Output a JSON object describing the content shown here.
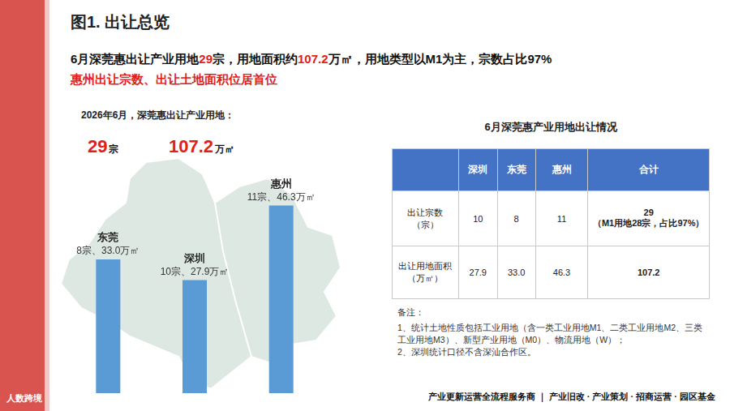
{
  "header": {
    "title": "图1. 出让总览",
    "headline": [
      [
        {
          "text": "6月深莞惠出让产业用地",
          "red": false
        },
        {
          "text": "29",
          "red": true
        },
        {
          "text": "宗，用地面积约",
          "red": false
        },
        {
          "text": "107.2",
          "red": true
        },
        {
          "text": "万㎡，用地类型以M1为主，宗数占比97%",
          "red": false
        }
      ],
      [
        {
          "text": "惠州出让宗数、出让土地面积位居首位",
          "red": true
        }
      ]
    ]
  },
  "summary": {
    "label": "2026年6月，深莞惠出让产业用地：",
    "figures": [
      {
        "value": "29",
        "unit": "宗"
      },
      {
        "value": "107.2",
        "unit": "万㎡"
      }
    ]
  },
  "chart_data": {
    "type": "bar",
    "categories": [
      "东莞",
      "深圳",
      "惠州"
    ],
    "values": [
      33.0,
      27.9,
      46.3
    ],
    "value_labels": [
      "8宗、33.0万㎡",
      "10宗、27.9万㎡",
      "11宗、46.3万㎡"
    ],
    "color": "#5b9bd5",
    "ylim": [
      0,
      50
    ],
    "grid": false,
    "tick_labels": false,
    "data_labels": true
  },
  "table": {
    "title": "6月深莞惠产业用地出让情况",
    "header": [
      "深圳",
      "东莞",
      "惠州",
      "合计"
    ],
    "rows": [
      {
        "label": "出让宗数（宗）",
        "cells": [
          "10",
          "8",
          "11"
        ],
        "total": [
          "29",
          "（M1用地28宗，占比97%）"
        ]
      },
      {
        "label": "出让用地面积（万㎡）",
        "cells": [
          "27.9",
          "33.0",
          "46.3"
        ],
        "total": [
          "107.2"
        ]
      }
    ]
  },
  "notes": {
    "title": "备注：",
    "items": [
      "1、统计土地性质包括工业用地（含一类工业用地M1、二类工业用地M2、三类工业用地M3）、新型产业用地（M0）、物流用地（W）；",
      "2、深圳统计口径不含深汕合作区。"
    ]
  },
  "footer": "产业更新运营全流程服务商 ｜ 产业旧改 · 产业策划 · 招商运营 · 园区基金",
  "watermark": "人数跨境"
}
